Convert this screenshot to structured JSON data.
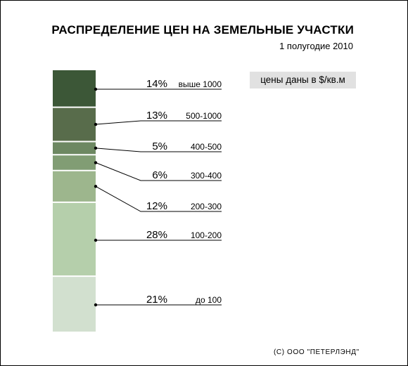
{
  "title": "РАСПРЕДЕЛЕНИЕ ЦЕН НА ЗЕМЕЛЬНЫЕ УЧАСТКИ",
  "subtitle": "1 полугодие 2010",
  "units_note": "цены даны в $/кв.м",
  "copyright": "(C) ООО \"ПЕТЕРЛЭНД\"",
  "chart_data": {
    "type": "bar",
    "stacked": true,
    "orientation": "vertical",
    "title": "РАСПРЕДЕЛЕНИЕ ЦЕН НА ЗЕМЕЛЬНЫЕ УЧАСТКИ",
    "subtitle": "1 полугодие 2010",
    "unit": "%",
    "segments": [
      {
        "category": "выше 1000",
        "value": 14,
        "label": "14%",
        "color": "#3c5737"
      },
      {
        "category": "500-1000",
        "value": 13,
        "label": "13%",
        "color": "#586c4b"
      },
      {
        "category": "400-500",
        "value": 5,
        "label": "5%",
        "color": "#6d8862"
      },
      {
        "category": "300-400",
        "value": 6,
        "label": "6%",
        "color": "#819d74"
      },
      {
        "category": "200-300",
        "value": 12,
        "label": "12%",
        "color": "#9db68d"
      },
      {
        "category": "100-200",
        "value": 28,
        "label": "28%",
        "color": "#b5cfab"
      },
      {
        "category": "до 100",
        "value": 21,
        "label": "21%",
        "color": "#d2e0cf"
      }
    ],
    "segment_divider_color": "#ffffff",
    "leader_line_color": "#000000"
  }
}
